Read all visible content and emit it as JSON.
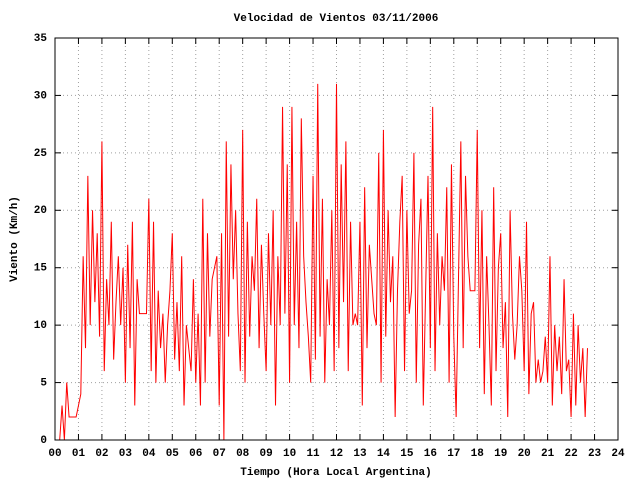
{
  "chart_data": {
    "type": "line",
    "title": "Velocidad de Vientos 03/11/2006",
    "x_label": "Tiempo (Hora Local Argentina)",
    "y_label": "Viento (Km/h)",
    "xlim": [
      0,
      24
    ],
    "ylim": [
      0,
      35
    ],
    "xticks": [
      {
        "value": 0,
        "label": "00"
      },
      {
        "value": 1,
        "label": "01"
      },
      {
        "value": 2,
        "label": "02"
      },
      {
        "value": 3,
        "label": "03"
      },
      {
        "value": 4,
        "label": "04"
      },
      {
        "value": 5,
        "label": "05"
      },
      {
        "value": 6,
        "label": "06"
      },
      {
        "value": 7,
        "label": "07"
      },
      {
        "value": 8,
        "label": "08"
      },
      {
        "value": 9,
        "label": "09"
      },
      10,
      11,
      12,
      13,
      14,
      15,
      16,
      17,
      18,
      19,
      20,
      21,
      22,
      23,
      24
    ],
    "yticks": [
      0,
      5,
      10,
      15,
      20,
      25,
      30,
      35
    ],
    "grid": true,
    "series": [
      {
        "color": "#ff0000",
        "x": [
          0.2,
          0.3,
          0.4,
          0.5,
          0.6,
          0.7,
          0.8,
          0.9,
          1.0,
          1.1,
          1.2,
          1.3,
          1.4,
          1.5,
          1.6,
          1.7,
          1.8,
          1.9,
          2.0,
          2.1,
          2.2,
          2.3,
          2.4,
          2.5,
          2.6,
          2.7,
          2.8,
          2.9,
          3.0,
          3.1,
          3.2,
          3.3,
          3.4,
          3.5,
          3.6,
          3.7,
          3.8,
          3.9,
          4.0,
          4.1,
          4.2,
          4.3,
          4.4,
          4.5,
          4.6,
          4.7,
          4.8,
          4.9,
          5.0,
          5.1,
          5.2,
          5.3,
          5.4,
          5.5,
          5.6,
          5.7,
          5.8,
          5.9,
          6.0,
          6.1,
          6.2,
          6.3,
          6.4,
          6.5,
          6.6,
          6.7,
          6.8,
          6.9,
          7.0,
          7.1,
          7.2,
          7.3,
          7.4,
          7.5,
          7.6,
          7.7,
          7.8,
          7.9,
          8.0,
          8.1,
          8.2,
          8.3,
          8.4,
          8.5,
          8.6,
          8.7,
          8.8,
          8.9,
          9.0,
          9.1,
          9.2,
          9.3,
          9.4,
          9.5,
          9.6,
          9.7,
          9.8,
          9.9,
          10.0,
          10.1,
          10.2,
          10.3,
          10.4,
          10.5,
          10.6,
          10.7,
          10.8,
          10.9,
          11.0,
          11.1,
          11.2,
          11.3,
          11.4,
          11.5,
          11.6,
          11.7,
          11.8,
          11.9,
          12.0,
          12.1,
          12.2,
          12.3,
          12.4,
          12.5,
          12.6,
          12.7,
          12.8,
          12.9,
          13.0,
          13.1,
          13.2,
          13.3,
          13.4,
          13.5,
          13.6,
          13.7,
          13.8,
          13.9,
          14.0,
          14.1,
          14.2,
          14.3,
          14.4,
          14.5,
          14.6,
          14.7,
          14.8,
          14.9,
          15.0,
          15.1,
          15.2,
          15.3,
          15.4,
          15.5,
          15.6,
          15.7,
          15.8,
          15.9,
          16.0,
          16.1,
          16.2,
          16.3,
          16.4,
          16.5,
          16.6,
          16.7,
          16.8,
          16.9,
          17.0,
          17.1,
          17.2,
          17.3,
          17.4,
          17.5,
          17.6,
          17.7,
          17.8,
          17.9,
          18.0,
          18.1,
          18.2,
          18.3,
          18.4,
          18.5,
          18.6,
          18.7,
          18.8,
          18.9,
          19.0,
          19.1,
          19.2,
          19.3,
          19.4,
          19.5,
          19.6,
          19.7,
          19.8,
          19.9,
          20.0,
          20.1,
          20.2,
          20.3,
          20.4,
          20.5,
          20.6,
          20.7,
          20.8,
          20.9,
          21.0,
          21.1,
          21.2,
          21.3,
          21.4,
          21.5,
          21.6,
          21.7,
          21.8,
          21.9,
          22.0,
          22.1,
          22.2,
          22.3,
          22.4,
          22.5,
          22.6,
          22.7
        ],
        "values": [
          0,
          3,
          0,
          5,
          2,
          2,
          2,
          2,
          3,
          4,
          16,
          8,
          23,
          10,
          20,
          12,
          18,
          9,
          26,
          6,
          14,
          10,
          19,
          7,
          12,
          16,
          10,
          15,
          5,
          17,
          8,
          19,
          3,
          14,
          11,
          11,
          11,
          11,
          21,
          6,
          19,
          5,
          13,
          8,
          11,
          5,
          10,
          13,
          18,
          7,
          12,
          6,
          16,
          3,
          10,
          8,
          6,
          14,
          5,
          11,
          3,
          21,
          5,
          18,
          9,
          14,
          15,
          16,
          3,
          18,
          0,
          26,
          9,
          24,
          14,
          20,
          11,
          6,
          27,
          5,
          19,
          9,
          16,
          13,
          21,
          8,
          17,
          11,
          6,
          18,
          10,
          20,
          3,
          16,
          10,
          29,
          11,
          24,
          5,
          29,
          10,
          19,
          8,
          28,
          16,
          12,
          9,
          5,
          23,
          7,
          31,
          9,
          21,
          5,
          14,
          10,
          20,
          6,
          31,
          8,
          24,
          12,
          26,
          6,
          19,
          10,
          11,
          10,
          19,
          3,
          22,
          8,
          17,
          14,
          11,
          10,
          25,
          5,
          27,
          9,
          20,
          12,
          16,
          2,
          13,
          19,
          23,
          6,
          20,
          11,
          13,
          25,
          5,
          17,
          21,
          3,
          13,
          23,
          8,
          29,
          6,
          18,
          10,
          16,
          13,
          22,
          5,
          24,
          9,
          2,
          14,
          26,
          8,
          23,
          16,
          13,
          13,
          13,
          27,
          8,
          20,
          4,
          16,
          10,
          3,
          22,
          6,
          15,
          18,
          8,
          12,
          2,
          20,
          11,
          7,
          10,
          16,
          13,
          6,
          19,
          4,
          11,
          12,
          5,
          7,
          5,
          6,
          9,
          5,
          16,
          3,
          10,
          6,
          9,
          4,
          14,
          6,
          7,
          2,
          11,
          3,
          10,
          5,
          8,
          2,
          8
        ]
      }
    ]
  }
}
